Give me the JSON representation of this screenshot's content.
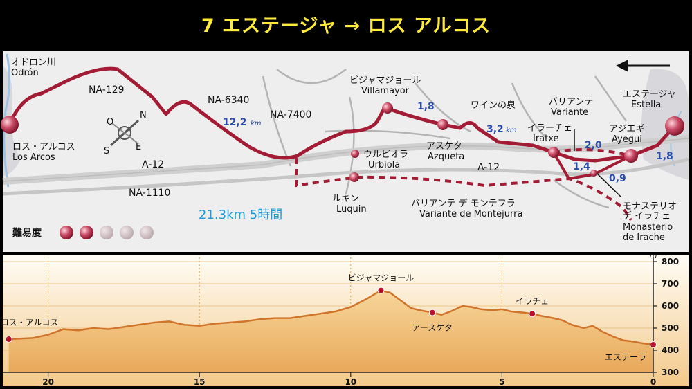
{
  "title": "7 エステージャ → ロス アルコス",
  "map": {
    "places": {
      "odron_jp": "オドロン川",
      "odron_es": "Odrón",
      "losarcos_jp": "ロス・アルコス",
      "losarcos_es": "Los Arcos",
      "villamayor_jp": "ビジャマジョール",
      "villamayor_es": "Villamayor",
      "urbiola_jp": "ウルビオラ",
      "urbiola_es": "Urbiola",
      "luquin_jp": "ルキン",
      "luquin_es": "Luquin",
      "azqueta_jp": "アスケタ",
      "azqueta_es": "Azqueta",
      "wine_fountain": "ワインの泉",
      "variante_jp": "バリアンテ",
      "variante_es": "Variante",
      "iratxe_jp": "イラーチェ",
      "iratxe_es": "Iratxe",
      "ayegui_jp": "アジエギ",
      "ayegui_es": "Ayegui",
      "estella_jp": "エステージャ",
      "estella_es": "Estella",
      "montejurra_jp": "バリアンテ デ モンテフラ",
      "montejurra_es": "Variante de Montejurra",
      "irache_jp1": "モナステリオ",
      "irache_jp2": "デ イラチェ",
      "irache_es1": "Monasterio",
      "irache_es2": "de Irache"
    },
    "roads": {
      "na129": "NA-129",
      "na6340": "NA-6340",
      "na7400": "NA-7400",
      "a12_left": "A-12",
      "a12_right": "A-12",
      "na1110": "NA-1110"
    },
    "distances": {
      "d1": "12,2",
      "d2": "1,8",
      "d3": "3,2",
      "d4": "2,0",
      "d5": "1,4",
      "d6": "0,9",
      "d7": "1,8",
      "km": "km"
    },
    "summary": "21.3km 5時間",
    "difficulty_label": "難易度",
    "difficulty": {
      "level": 2,
      "max": 5
    },
    "compass": {
      "n": "N",
      "s": "S",
      "e": "E",
      "w": "O"
    },
    "colors": {
      "route": "#a31c35",
      "distance": "#2a4ca8",
      "title": "#ffeb3b"
    }
  },
  "profile": {
    "unit": "m",
    "y_ticks": [
      "800",
      "700",
      "600",
      "500",
      "400",
      "300"
    ],
    "x_ticks": [
      "20",
      "15",
      "10",
      "5",
      "0"
    ],
    "points": [
      {
        "label": "ロス・アルコス",
        "km": 21.3,
        "alt": 450
      },
      {
        "label": "ビジャマジョール",
        "km": 9.0,
        "alt": 670
      },
      {
        "label": "アースケタ",
        "km": 7.3,
        "alt": 570
      },
      {
        "label": "イラチェ",
        "km": 4.0,
        "alt": 565
      },
      {
        "label": "エステーラ",
        "km": 0.0,
        "alt": 425
      }
    ]
  },
  "chart_data": {
    "type": "area",
    "title": "",
    "xlabel": "",
    "ylabel": "m",
    "xlim": [
      21.5,
      0
    ],
    "ylim": [
      300,
      800
    ],
    "x_ticks": [
      20,
      15,
      10,
      5,
      0
    ],
    "y_ticks": [
      800,
      700,
      600,
      500,
      400,
      300
    ],
    "grid": true,
    "x": [
      21.3,
      20.5,
      20.0,
      19.5,
      19.0,
      18.5,
      18.0,
      17.5,
      17.0,
      16.5,
      16.0,
      15.5,
      15.0,
      14.5,
      14.0,
      13.5,
      13.0,
      12.5,
      12.0,
      11.5,
      11.0,
      10.5,
      10.0,
      9.5,
      9.0,
      8.7,
      8.3,
      8.0,
      7.7,
      7.3,
      7.0,
      6.7,
      6.3,
      6.0,
      5.7,
      5.3,
      5.0,
      4.7,
      4.3,
      4.0,
      3.7,
      3.3,
      3.0,
      2.7,
      2.3,
      2.0,
      1.7,
      1.3,
      1.0,
      0.7,
      0.3,
      0.0
    ],
    "series": [
      {
        "values": [
          450,
          455,
          470,
          495,
          490,
          500,
          495,
          505,
          515,
          525,
          530,
          515,
          510,
          520,
          525,
          530,
          540,
          545,
          545,
          555,
          565,
          575,
          595,
          630,
          670,
          660,
          620,
          590,
          580,
          570,
          560,
          575,
          600,
          595,
          585,
          580,
          585,
          575,
          570,
          565,
          555,
          545,
          535,
          515,
          500,
          510,
          485,
          460,
          445,
          440,
          430,
          425
        ]
      }
    ]
  }
}
